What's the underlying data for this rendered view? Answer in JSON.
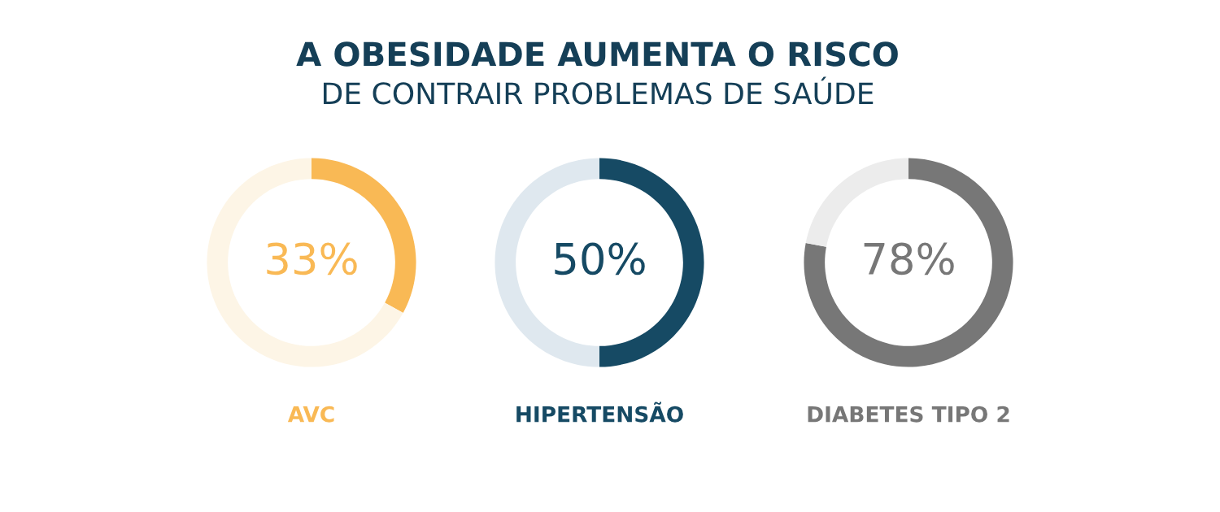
{
  "chart_data": [
    {
      "type": "donut",
      "title": "A OBESIDADE AUMENTA O RISCO",
      "subtitle": "DE CONTRAIR PROBLEMAS DE SAÚDE",
      "xlabel": "AVC",
      "categories": [
        null,
        null
      ],
      "values": [
        33,
        67
      ],
      "colors": [
        "#f9b955",
        "#fdf5e6"
      ],
      "annotations": [
        "33%"
      ]
    },
    {
      "type": "donut",
      "xlabel": "HIPERTENSÃO",
      "categories": [
        null,
        null
      ],
      "values": [
        50,
        50
      ],
      "colors": [
        "#164a64",
        "#dfe8ef"
      ],
      "annotations": [
        "50%"
      ]
    },
    {
      "type": "donut",
      "xlabel": "DIABETES TIPO 2",
      "categories": [
        null,
        null
      ],
      "values": [
        78,
        22
      ],
      "colors": [
        "#777777",
        "#ececec"
      ],
      "annotations": [
        "78%"
      ]
    }
  ]
}
